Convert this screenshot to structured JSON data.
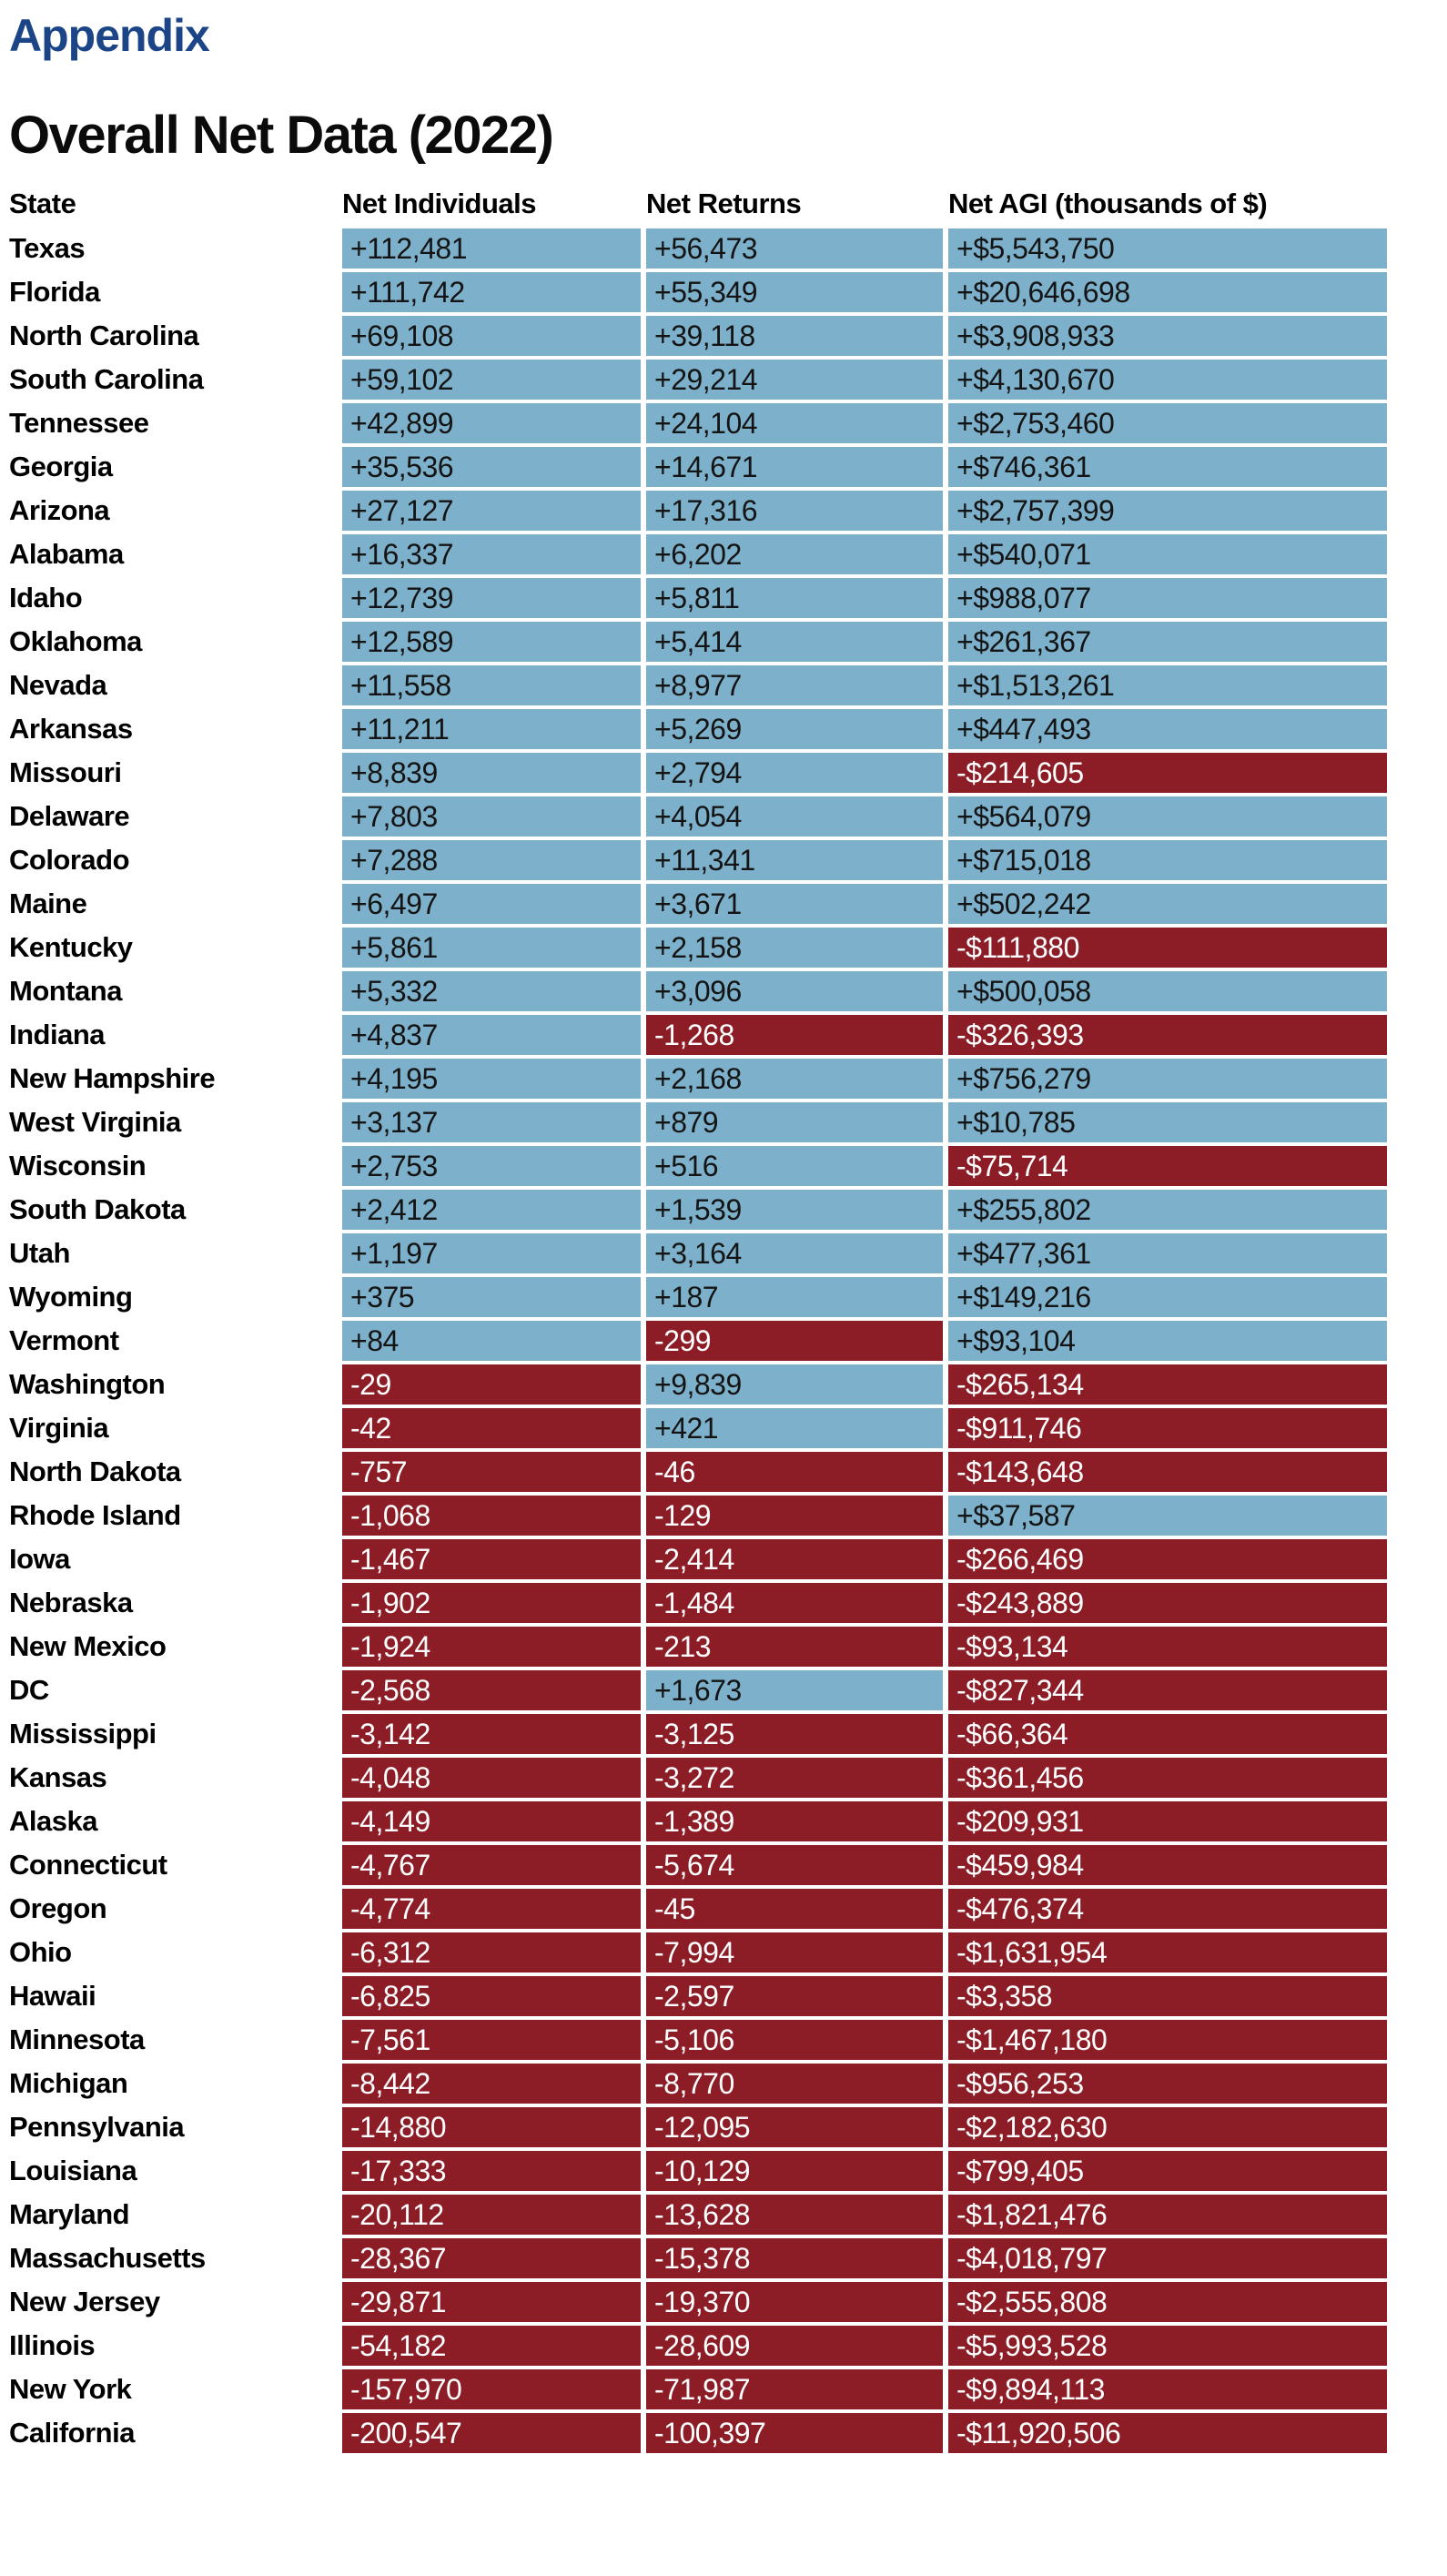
{
  "page": {
    "title": "Appendix",
    "section_title": "Overall Net Data (2022)"
  },
  "colors": {
    "title_color": "#1C4587",
    "positive_cell_bg": "#7DB0CA",
    "negative_cell_bg": "#8C1D26",
    "positive_cell_text": "#141414",
    "negative_cell_text": "#FFFFFF"
  },
  "table": {
    "columns": [
      "State",
      "Net Individuals",
      "Net Returns",
      "Net AGI (thousands of $)"
    ],
    "rows": [
      {
        "state": "Texas",
        "cells": [
          {
            "text": "+112,481",
            "negative": false
          },
          {
            "text": "+56,473",
            "negative": false
          },
          {
            "text": "+$5,543,750",
            "negative": false
          }
        ]
      },
      {
        "state": "Florida",
        "cells": [
          {
            "text": "+111,742",
            "negative": false
          },
          {
            "text": "+55,349",
            "negative": false
          },
          {
            "text": "+$20,646,698",
            "negative": false
          }
        ]
      },
      {
        "state": "North Carolina",
        "cells": [
          {
            "text": "+69,108",
            "negative": false
          },
          {
            "text": "+39,118",
            "negative": false
          },
          {
            "text": "+$3,908,933",
            "negative": false
          }
        ]
      },
      {
        "state": "South Carolina",
        "cells": [
          {
            "text": "+59,102",
            "negative": false
          },
          {
            "text": "+29,214",
            "negative": false
          },
          {
            "text": "+$4,130,670",
            "negative": false
          }
        ]
      },
      {
        "state": "Tennessee",
        "cells": [
          {
            "text": "+42,899",
            "negative": false
          },
          {
            "text": "+24,104",
            "negative": false
          },
          {
            "text": "+$2,753,460",
            "negative": false
          }
        ]
      },
      {
        "state": "Georgia",
        "cells": [
          {
            "text": "+35,536",
            "negative": false
          },
          {
            "text": "+14,671",
            "negative": false
          },
          {
            "text": "+$746,361",
            "negative": false
          }
        ]
      },
      {
        "state": "Arizona",
        "cells": [
          {
            "text": "+27,127",
            "negative": false
          },
          {
            "text": "+17,316",
            "negative": false
          },
          {
            "text": "+$2,757,399",
            "negative": false
          }
        ]
      },
      {
        "state": "Alabama",
        "cells": [
          {
            "text": "+16,337",
            "negative": false
          },
          {
            "text": "+6,202",
            "negative": false
          },
          {
            "text": "+$540,071",
            "negative": false
          }
        ]
      },
      {
        "state": "Idaho",
        "cells": [
          {
            "text": "+12,739",
            "negative": false
          },
          {
            "text": "+5,811",
            "negative": false
          },
          {
            "text": "+$988,077",
            "negative": false
          }
        ]
      },
      {
        "state": "Oklahoma",
        "cells": [
          {
            "text": "+12,589",
            "negative": false
          },
          {
            "text": "+5,414",
            "negative": false
          },
          {
            "text": "+$261,367",
            "negative": false
          }
        ]
      },
      {
        "state": "Nevada",
        "cells": [
          {
            "text": "+11,558",
            "negative": false
          },
          {
            "text": "+8,977",
            "negative": false
          },
          {
            "text": "+$1,513,261",
            "negative": false
          }
        ]
      },
      {
        "state": "Arkansas",
        "cells": [
          {
            "text": "+11,211",
            "negative": false
          },
          {
            "text": "+5,269",
            "negative": false
          },
          {
            "text": "+$447,493",
            "negative": false
          }
        ]
      },
      {
        "state": "Missouri",
        "cells": [
          {
            "text": "+8,839",
            "negative": false
          },
          {
            "text": "+2,794",
            "negative": false
          },
          {
            "text": "-$214,605",
            "negative": true
          }
        ]
      },
      {
        "state": "Delaware",
        "cells": [
          {
            "text": "+7,803",
            "negative": false
          },
          {
            "text": "+4,054",
            "negative": false
          },
          {
            "text": "+$564,079",
            "negative": false
          }
        ]
      },
      {
        "state": "Colorado",
        "cells": [
          {
            "text": "+7,288",
            "negative": false
          },
          {
            "text": "+11,341",
            "negative": false
          },
          {
            "text": "+$715,018",
            "negative": false
          }
        ]
      },
      {
        "state": "Maine",
        "cells": [
          {
            "text": "+6,497",
            "negative": false
          },
          {
            "text": "+3,671",
            "negative": false
          },
          {
            "text": "+$502,242",
            "negative": false
          }
        ]
      },
      {
        "state": "Kentucky",
        "cells": [
          {
            "text": "+5,861",
            "negative": false
          },
          {
            "text": "+2,158",
            "negative": false
          },
          {
            "text": "-$111,880",
            "negative": true
          }
        ]
      },
      {
        "state": "Montana",
        "cells": [
          {
            "text": "+5,332",
            "negative": false
          },
          {
            "text": "+3,096",
            "negative": false
          },
          {
            "text": "+$500,058",
            "negative": false
          }
        ]
      },
      {
        "state": "Indiana",
        "cells": [
          {
            "text": "+4,837",
            "negative": false
          },
          {
            "text": "-1,268",
            "negative": true
          },
          {
            "text": "-$326,393",
            "negative": true
          }
        ]
      },
      {
        "state": "New Hampshire",
        "cells": [
          {
            "text": "+4,195",
            "negative": false
          },
          {
            "text": "+2,168",
            "negative": false
          },
          {
            "text": "+$756,279",
            "negative": false
          }
        ]
      },
      {
        "state": "West Virginia",
        "cells": [
          {
            "text": "+3,137",
            "negative": false
          },
          {
            "text": "+879",
            "negative": false
          },
          {
            "text": "+$10,785",
            "negative": false
          }
        ]
      },
      {
        "state": "Wisconsin",
        "cells": [
          {
            "text": "+2,753",
            "negative": false
          },
          {
            "text": "+516",
            "negative": false
          },
          {
            "text": "-$75,714",
            "negative": true
          }
        ]
      },
      {
        "state": "South Dakota",
        "cells": [
          {
            "text": "+2,412",
            "negative": false
          },
          {
            "text": "+1,539",
            "negative": false
          },
          {
            "text": "+$255,802",
            "negative": false
          }
        ]
      },
      {
        "state": "Utah",
        "cells": [
          {
            "text": "+1,197",
            "negative": false
          },
          {
            "text": "+3,164",
            "negative": false
          },
          {
            "text": "+$477,361",
            "negative": false
          }
        ]
      },
      {
        "state": "Wyoming",
        "cells": [
          {
            "text": "+375",
            "negative": false
          },
          {
            "text": "+187",
            "negative": false
          },
          {
            "text": "+$149,216",
            "negative": false
          }
        ]
      },
      {
        "state": "Vermont",
        "cells": [
          {
            "text": "+84",
            "negative": false
          },
          {
            "text": "-299",
            "negative": true
          },
          {
            "text": "+$93,104",
            "negative": false
          }
        ]
      },
      {
        "state": "Washington",
        "cells": [
          {
            "text": "-29",
            "negative": true
          },
          {
            "text": "+9,839",
            "negative": false
          },
          {
            "text": "-$265,134",
            "negative": true
          }
        ]
      },
      {
        "state": "Virginia",
        "cells": [
          {
            "text": "-42",
            "negative": true
          },
          {
            "text": "+421",
            "negative": false
          },
          {
            "text": "-$911,746",
            "negative": true
          }
        ]
      },
      {
        "state": "North Dakota",
        "cells": [
          {
            "text": "-757",
            "negative": true
          },
          {
            "text": "-46",
            "negative": true
          },
          {
            "text": "-$143,648",
            "negative": true
          }
        ]
      },
      {
        "state": "Rhode Island",
        "cells": [
          {
            "text": "-1,068",
            "negative": true
          },
          {
            "text": "-129",
            "negative": true
          },
          {
            "text": "+$37,587",
            "negative": false
          }
        ]
      },
      {
        "state": "Iowa",
        "cells": [
          {
            "text": "-1,467",
            "negative": true
          },
          {
            "text": "-2,414",
            "negative": true
          },
          {
            "text": "-$266,469",
            "negative": true
          }
        ]
      },
      {
        "state": "Nebraska",
        "cells": [
          {
            "text": "-1,902",
            "negative": true
          },
          {
            "text": "-1,484",
            "negative": true
          },
          {
            "text": "-$243,889",
            "negative": true
          }
        ]
      },
      {
        "state": "New Mexico",
        "cells": [
          {
            "text": "-1,924",
            "negative": true
          },
          {
            "text": "-213",
            "negative": true
          },
          {
            "text": "-$93,134",
            "negative": true
          }
        ]
      },
      {
        "state": "DC",
        "cells": [
          {
            "text": "-2,568",
            "negative": true
          },
          {
            "text": "+1,673",
            "negative": false
          },
          {
            "text": "-$827,344",
            "negative": true
          }
        ]
      },
      {
        "state": "Mississippi",
        "cells": [
          {
            "text": "-3,142",
            "negative": true
          },
          {
            "text": "-3,125",
            "negative": true
          },
          {
            "text": "-$66,364",
            "negative": true
          }
        ]
      },
      {
        "state": "Kansas",
        "cells": [
          {
            "text": "-4,048",
            "negative": true
          },
          {
            "text": "-3,272",
            "negative": true
          },
          {
            "text": "-$361,456",
            "negative": true
          }
        ]
      },
      {
        "state": "Alaska",
        "cells": [
          {
            "text": "-4,149",
            "negative": true
          },
          {
            "text": "-1,389",
            "negative": true
          },
          {
            "text": "-$209,931",
            "negative": true
          }
        ]
      },
      {
        "state": "Connecticut",
        "cells": [
          {
            "text": "-4,767",
            "negative": true
          },
          {
            "text": "-5,674",
            "negative": true
          },
          {
            "text": "-$459,984",
            "negative": true
          }
        ]
      },
      {
        "state": "Oregon",
        "cells": [
          {
            "text": "-4,774",
            "negative": true
          },
          {
            "text": "-45",
            "negative": true
          },
          {
            "text": "-$476,374",
            "negative": true
          }
        ]
      },
      {
        "state": "Ohio",
        "cells": [
          {
            "text": "-6,312",
            "negative": true
          },
          {
            "text": "-7,994",
            "negative": true
          },
          {
            "text": "-$1,631,954",
            "negative": true
          }
        ]
      },
      {
        "state": "Hawaii",
        "cells": [
          {
            "text": "-6,825",
            "negative": true
          },
          {
            "text": "-2,597",
            "negative": true
          },
          {
            "text": "-$3,358",
            "negative": true
          }
        ]
      },
      {
        "state": "Minnesota",
        "cells": [
          {
            "text": "-7,561",
            "negative": true
          },
          {
            "text": "-5,106",
            "negative": true
          },
          {
            "text": "-$1,467,180",
            "negative": true
          }
        ]
      },
      {
        "state": "Michigan",
        "cells": [
          {
            "text": "-8,442",
            "negative": true
          },
          {
            "text": "-8,770",
            "negative": true
          },
          {
            "text": "-$956,253",
            "negative": true
          }
        ]
      },
      {
        "state": "Pennsylvania",
        "cells": [
          {
            "text": "-14,880",
            "negative": true
          },
          {
            "text": "-12,095",
            "negative": true
          },
          {
            "text": "-$2,182,630",
            "negative": true
          }
        ]
      },
      {
        "state": "Louisiana",
        "cells": [
          {
            "text": "-17,333",
            "negative": true
          },
          {
            "text": "-10,129",
            "negative": true
          },
          {
            "text": "-$799,405",
            "negative": true
          }
        ]
      },
      {
        "state": "Maryland",
        "cells": [
          {
            "text": "-20,112",
            "negative": true
          },
          {
            "text": "-13,628",
            "negative": true
          },
          {
            "text": "-$1,821,476",
            "negative": true
          }
        ]
      },
      {
        "state": "Massachusetts",
        "cells": [
          {
            "text": "-28,367",
            "negative": true
          },
          {
            "text": "-15,378",
            "negative": true
          },
          {
            "text": "-$4,018,797",
            "negative": true
          }
        ]
      },
      {
        "state": "New Jersey",
        "cells": [
          {
            "text": "-29,871",
            "negative": true
          },
          {
            "text": "-19,370",
            "negative": true
          },
          {
            "text": "-$2,555,808",
            "negative": true
          }
        ]
      },
      {
        "state": "Illinois",
        "cells": [
          {
            "text": "-54,182",
            "negative": true
          },
          {
            "text": "-28,609",
            "negative": true
          },
          {
            "text": "-$5,993,528",
            "negative": true
          }
        ]
      },
      {
        "state": "New York",
        "cells": [
          {
            "text": "-157,970",
            "negative": true
          },
          {
            "text": "-71,987",
            "negative": true
          },
          {
            "text": "-$9,894,113",
            "negative": true
          }
        ]
      },
      {
        "state": "California",
        "cells": [
          {
            "text": "-200,547",
            "negative": true
          },
          {
            "text": "-100,397",
            "negative": true
          },
          {
            "text": "-$11,920,506",
            "negative": true
          }
        ]
      }
    ]
  }
}
